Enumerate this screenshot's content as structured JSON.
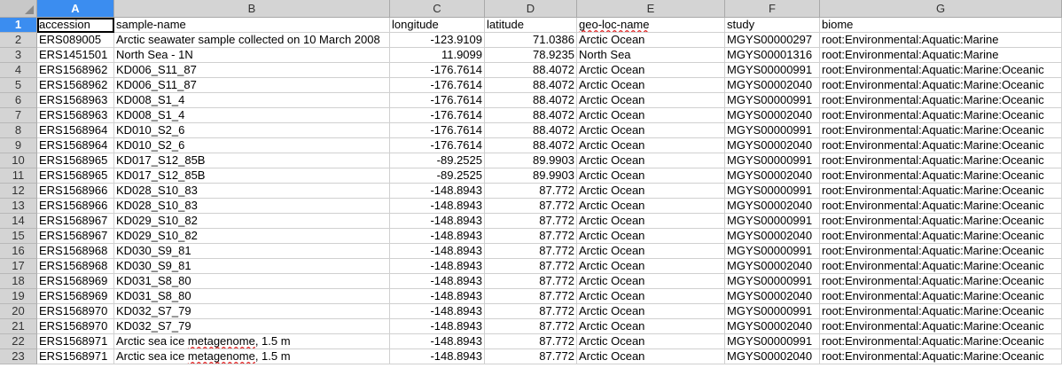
{
  "columns": [
    {
      "letter": "A"
    },
    {
      "letter": "B"
    },
    {
      "letter": "C"
    },
    {
      "letter": "D"
    },
    {
      "letter": "E"
    },
    {
      "letter": "F"
    },
    {
      "letter": "G"
    }
  ],
  "active_cell": "A1",
  "header_row": [
    "accession",
    "sample-name",
    "longitude",
    "latitude",
    "geo-loc-name",
    "study",
    "biome"
  ],
  "rows": [
    {
      "num": "2",
      "cells": [
        "ERS089005",
        "Arctic seawater sample collected on 10 March 2008",
        "-123.9109",
        "71.0386",
        "Arctic Ocean",
        "MGYS00000297",
        "root:Environmental:Aquatic:Marine"
      ]
    },
    {
      "num": "3",
      "cells": [
        "ERS1451501",
        "North Sea - 1N",
        "11.9099",
        "78.9235",
        "North Sea",
        "MGYS00001316",
        "root:Environmental:Aquatic:Marine"
      ]
    },
    {
      "num": "4",
      "cells": [
        "ERS1568962",
        "KD006_S11_87",
        "-176.7614",
        "88.4072",
        "Arctic Ocean",
        "MGYS00000991",
        "root:Environmental:Aquatic:Marine:Oceanic"
      ]
    },
    {
      "num": "5",
      "cells": [
        "ERS1568962",
        "KD006_S11_87",
        "-176.7614",
        "88.4072",
        "Arctic Ocean",
        "MGYS00002040",
        "root:Environmental:Aquatic:Marine:Oceanic"
      ]
    },
    {
      "num": "6",
      "cells": [
        "ERS1568963",
        "KD008_S1_4",
        "-176.7614",
        "88.4072",
        "Arctic Ocean",
        "MGYS00000991",
        "root:Environmental:Aquatic:Marine:Oceanic"
      ]
    },
    {
      "num": "7",
      "cells": [
        "ERS1568963",
        "KD008_S1_4",
        "-176.7614",
        "88.4072",
        "Arctic Ocean",
        "MGYS00002040",
        "root:Environmental:Aquatic:Marine:Oceanic"
      ]
    },
    {
      "num": "8",
      "cells": [
        "ERS1568964",
        "KD010_S2_6",
        "-176.7614",
        "88.4072",
        "Arctic Ocean",
        "MGYS00000991",
        "root:Environmental:Aquatic:Marine:Oceanic"
      ]
    },
    {
      "num": "9",
      "cells": [
        "ERS1568964",
        "KD010_S2_6",
        "-176.7614",
        "88.4072",
        "Arctic Ocean",
        "MGYS00002040",
        "root:Environmental:Aquatic:Marine:Oceanic"
      ]
    },
    {
      "num": "10",
      "cells": [
        "ERS1568965",
        "KD017_S12_85B",
        "-89.2525",
        "89.9903",
        "Arctic Ocean",
        "MGYS00000991",
        "root:Environmental:Aquatic:Marine:Oceanic"
      ]
    },
    {
      "num": "11",
      "cells": [
        "ERS1568965",
        "KD017_S12_85B",
        "-89.2525",
        "89.9903",
        "Arctic Ocean",
        "MGYS00002040",
        "root:Environmental:Aquatic:Marine:Oceanic"
      ]
    },
    {
      "num": "12",
      "cells": [
        "ERS1568966",
        "KD028_S10_83",
        "-148.8943",
        "87.772",
        "Arctic Ocean",
        "MGYS00000991",
        "root:Environmental:Aquatic:Marine:Oceanic"
      ]
    },
    {
      "num": "13",
      "cells": [
        "ERS1568966",
        "KD028_S10_83",
        "-148.8943",
        "87.772",
        "Arctic Ocean",
        "MGYS00002040",
        "root:Environmental:Aquatic:Marine:Oceanic"
      ]
    },
    {
      "num": "14",
      "cells": [
        "ERS1568967",
        "KD029_S10_82",
        "-148.8943",
        "87.772",
        "Arctic Ocean",
        "MGYS00000991",
        "root:Environmental:Aquatic:Marine:Oceanic"
      ]
    },
    {
      "num": "15",
      "cells": [
        "ERS1568967",
        "KD029_S10_82",
        "-148.8943",
        "87.772",
        "Arctic Ocean",
        "MGYS00002040",
        "root:Environmental:Aquatic:Marine:Oceanic"
      ]
    },
    {
      "num": "16",
      "cells": [
        "ERS1568968",
        "KD030_S9_81",
        "-148.8943",
        "87.772",
        "Arctic Ocean",
        "MGYS00000991",
        "root:Environmental:Aquatic:Marine:Oceanic"
      ]
    },
    {
      "num": "17",
      "cells": [
        "ERS1568968",
        "KD030_S9_81",
        "-148.8943",
        "87.772",
        "Arctic Ocean",
        "MGYS00002040",
        "root:Environmental:Aquatic:Marine:Oceanic"
      ]
    },
    {
      "num": "18",
      "cells": [
        "ERS1568969",
        "KD031_S8_80",
        "-148.8943",
        "87.772",
        "Arctic Ocean",
        "MGYS00000991",
        "root:Environmental:Aquatic:Marine:Oceanic"
      ]
    },
    {
      "num": "19",
      "cells": [
        "ERS1568969",
        "KD031_S8_80",
        "-148.8943",
        "87.772",
        "Arctic Ocean",
        "MGYS00002040",
        "root:Environmental:Aquatic:Marine:Oceanic"
      ]
    },
    {
      "num": "20",
      "cells": [
        "ERS1568970",
        "KD032_S7_79",
        "-148.8943",
        "87.772",
        "Arctic Ocean",
        "MGYS00000991",
        "root:Environmental:Aquatic:Marine:Oceanic"
      ]
    },
    {
      "num": "21",
      "cells": [
        "ERS1568970",
        "KD032_S7_79",
        "-148.8943",
        "87.772",
        "Arctic Ocean",
        "MGYS00002040",
        "root:Environmental:Aquatic:Marine:Oceanic"
      ]
    },
    {
      "num": "22",
      "cells": [
        "ERS1568971",
        "Arctic sea ice metagenome, 1.5 m",
        "-148.8943",
        "87.772",
        "Arctic Ocean",
        "MGYS00000991",
        "root:Environmental:Aquatic:Marine:Oceanic"
      ]
    },
    {
      "num": "23",
      "cells": [
        "ERS1568971",
        "Arctic sea ice metagenome, 1.5 m",
        "-148.8943",
        "87.772",
        "Arctic Ocean",
        "MGYS00002040",
        "root:Environmental:Aquatic:Marine:Oceanic"
      ]
    }
  ],
  "colors": {
    "header_bg": "#d4d4d4",
    "active_header": "#3b8df0",
    "grid_line": "#d0d0d0",
    "spell_underline": "#e02020"
  }
}
